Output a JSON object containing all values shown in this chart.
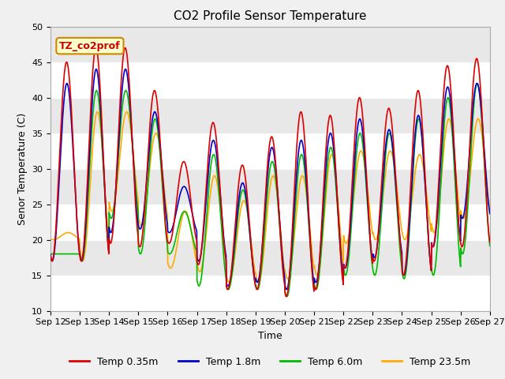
{
  "title": "CO2 Profile Sensor Temperature",
  "xlabel": "Time",
  "ylabel": "Senor Temperature (C)",
  "ylim": [
    10,
    50
  ],
  "x_tick_labels": [
    "Sep 12",
    "Sep 13",
    "Sep 14",
    "Sep 15",
    "Sep 16",
    "Sep 17",
    "Sep 18",
    "Sep 19",
    "Sep 20",
    "Sep 21",
    "Sep 22",
    "Sep 23",
    "Sep 24",
    "Sep 25",
    "Sep 26",
    "Sep 27"
  ],
  "legend_labels": [
    "Temp 0.35m",
    "Temp 1.8m",
    "Temp 6.0m",
    "Temp 23.5m"
  ],
  "line_colors": [
    "#dd0000",
    "#0000cc",
    "#00bb00",
    "#ffaa00"
  ],
  "annotation_text": "TZ_co2prof",
  "annotation_bg": "#ffffcc",
  "annotation_border": "#cc8800",
  "bg_color_light": "#e8e8e8",
  "bg_color_dark": "#d0d0d0",
  "grid_color": "#ffffff",
  "fig_bg": "#f0f0f0",
  "title_fontsize": 11,
  "label_fontsize": 9,
  "tick_fontsize": 8,
  "legend_fontsize": 9,
  "red_peaks": [
    45,
    47,
    47,
    41,
    31,
    36.5,
    30.5,
    34.5,
    38,
    37.5,
    40,
    38.5,
    41,
    44.5,
    45.5
  ],
  "red_troughs": [
    17,
    17,
    19.5,
    19,
    19.5,
    16.5,
    13,
    13,
    12,
    13,
    16,
    17,
    15,
    19,
    19
  ],
  "blue_peaks": [
    42,
    44,
    44,
    38,
    27.5,
    34,
    28,
    33,
    34,
    35,
    37,
    35.5,
    37.5,
    41.5,
    42
  ],
  "blue_troughs": [
    17,
    17,
    21,
    21.5,
    21,
    17,
    13.5,
    14,
    13,
    14,
    16,
    17.5,
    15,
    19,
    23
  ],
  "green_peaks": [
    18,
    41,
    41,
    37,
    24,
    32,
    27,
    31,
    32,
    33,
    35,
    35,
    37,
    40,
    42
  ],
  "green_troughs": [
    18,
    17,
    23,
    18,
    18,
    13.5,
    13,
    13,
    12,
    13,
    15,
    15,
    14.5,
    15,
    18
  ],
  "orange_peaks": [
    21,
    38,
    38,
    35,
    24,
    29,
    25.5,
    29,
    29,
    32,
    32.5,
    32.5,
    32,
    37,
    37
  ],
  "orange_troughs": [
    20,
    17,
    24,
    22,
    16,
    15.5,
    14,
    14,
    14.5,
    15,
    19.5,
    20,
    20,
    21,
    23
  ]
}
